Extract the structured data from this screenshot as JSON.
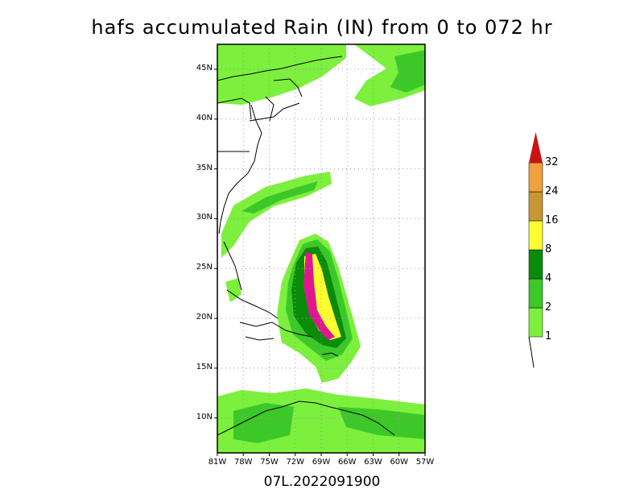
{
  "title": "hafs accumulated Rain (IN) from 0 to 072 hr",
  "footer": "07L.2022091900",
  "map": {
    "lon_ticks": [
      "81W",
      "78W",
      "75W",
      "72W",
      "69W",
      "66W",
      "63W",
      "60W",
      "57W"
    ],
    "lat_ticks": [
      "45N",
      "40N",
      "35N",
      "30N",
      "25N",
      "20N",
      "15N",
      "10N"
    ],
    "lon_range": [
      -81,
      -57
    ],
    "lat_range": [
      6.5,
      47.5
    ]
  },
  "colorbar": {
    "labels": [
      "1",
      "2",
      "4",
      "8",
      "16",
      "24",
      "32"
    ],
    "colors": [
      "#7cf03c",
      "#3cc828",
      "#0a8c0a",
      "#ffff30",
      "#c89632",
      "#f0a03c",
      "#c81414"
    ]
  }
}
